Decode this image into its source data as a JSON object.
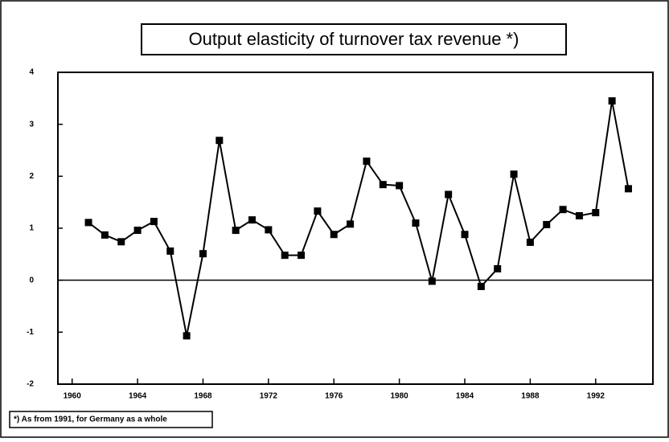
{
  "chart_data": {
    "type": "line",
    "title": "Output elasticity of turnover tax revenue *)",
    "footnote": "*) As from 1991, for Germany as a whole",
    "x": [
      1961,
      1962,
      1963,
      1964,
      1965,
      1966,
      1967,
      1968,
      1969,
      1970,
      1971,
      1972,
      1973,
      1974,
      1975,
      1976,
      1977,
      1978,
      1979,
      1980,
      1981,
      1982,
      1983,
      1984,
      1985,
      1986,
      1987,
      1988,
      1989,
      1990,
      1991,
      1992,
      1993,
      1994
    ],
    "series": [
      {
        "name": "Output elasticity",
        "color": "#000000",
        "values": [
          1.11,
          0.87,
          0.74,
          0.96,
          1.13,
          0.56,
          -1.07,
          0.51,
          2.69,
          0.96,
          1.16,
          0.97,
          0.48,
          0.48,
          1.33,
          0.88,
          1.08,
          2.29,
          1.84,
          1.82,
          1.1,
          -0.02,
          1.65,
          0.88,
          -0.12,
          0.22,
          2.04,
          0.73,
          1.07,
          1.36,
          1.24,
          1.3,
          3.45,
          1.76
        ]
      }
    ],
    "xlim": [
      1959.13,
      1995.5
    ],
    "xticks": [
      1960,
      1964,
      1968,
      1972,
      1976,
      1980,
      1984,
      1988,
      1992
    ],
    "ylim": [
      -2,
      4
    ],
    "yticks": [
      -2,
      -1,
      0,
      1,
      2,
      3,
      4
    ]
  }
}
